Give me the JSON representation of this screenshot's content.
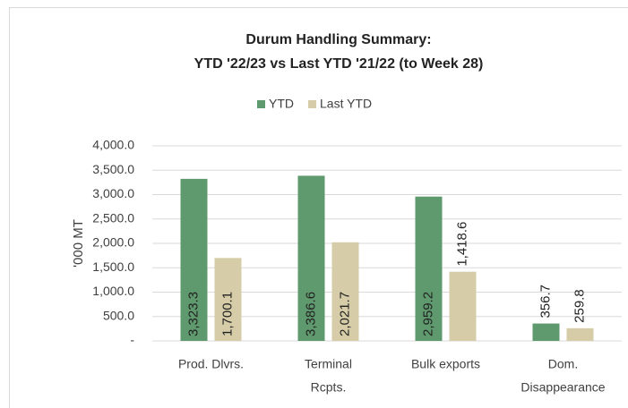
{
  "chart_data": {
    "type": "bar",
    "title": [
      "Durum Handling  Summary:",
      "YTD '22/23 vs Last YTD '21/22 (to Week 28)"
    ],
    "y_label": "'000 MT",
    "categories": [
      [
        "Prod. Dlvrs."
      ],
      [
        "Terminal",
        "Rcpts."
      ],
      [
        "Bulk exports"
      ],
      [
        "Dom.",
        "Disappearance"
      ]
    ],
    "series": [
      {
        "name": "YTD",
        "color": "#5f9a6e",
        "values": [
          3323.3,
          3386.6,
          2959.2,
          356.7
        ],
        "value_labels": [
          "3,323.3",
          "3,386.6",
          "2,959.2",
          "356.7"
        ]
      },
      {
        "name": "Last YTD",
        "color": "#d6cca8",
        "values": [
          1700.1,
          2021.7,
          1418.6,
          259.8
        ],
        "value_labels": [
          "1,700.1",
          "2,021.7",
          "1,418.6",
          "259.8"
        ]
      }
    ],
    "ylim": [
      0,
      4000
    ],
    "yticks": [
      {
        "value": 0,
        "label": "-"
      },
      {
        "value": 500,
        "label": "500.0"
      },
      {
        "value": 1000,
        "label": "1,000.0"
      },
      {
        "value": 1500,
        "label": "1,500.0"
      },
      {
        "value": 2000,
        "label": "2,000.0"
      },
      {
        "value": 2500,
        "label": "2,500.0"
      },
      {
        "value": 3000,
        "label": "3,000.0"
      },
      {
        "value": 3500,
        "label": "3,500.0"
      },
      {
        "value": 4000,
        "label": "4,000.0"
      }
    ],
    "grid": true,
    "legend": "top"
  }
}
